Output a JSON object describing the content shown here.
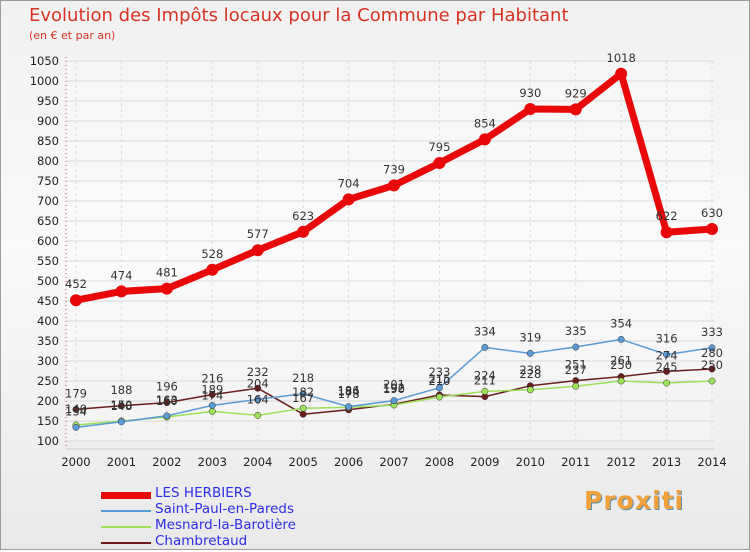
{
  "title": "Evolution des Impôts locaux pour la Commune par Habitant",
  "subtitle": "(en € et par an)",
  "logo_text": "Proxiti",
  "chart_data": {
    "type": "line",
    "title": "Evolution des Impôts locaux pour la Commune par Habitant",
    "ylabel": "(en € et par an)",
    "xlabel": "",
    "categories": [
      "2000",
      "2001",
      "2002",
      "2003",
      "2004",
      "2005",
      "2006",
      "2007",
      "2008",
      "2009",
      "2010",
      "2011",
      "2012",
      "2013",
      "2014"
    ],
    "yticks": [
      100,
      150,
      200,
      250,
      300,
      350,
      400,
      450,
      500,
      550,
      600,
      650,
      700,
      750,
      800,
      850,
      900,
      950,
      1000,
      1050
    ],
    "ylim": [
      100,
      1050
    ],
    "grid": true,
    "legend_position": "bottom-left",
    "series": [
      {
        "name": "LES HERBIERS",
        "color": "#e8080a",
        "values": [
          452,
          474,
          481,
          528,
          577,
          623,
          704,
          739,
          795,
          854,
          930,
          929,
          1018,
          622,
          630
        ]
      },
      {
        "name": "Saint-Paul-en-Pareds",
        "color": "#5b9bd5",
        "values": [
          134,
          148,
          163,
          189,
          204,
          218,
          186,
          201,
          233,
          334,
          319,
          335,
          354,
          316,
          333
        ]
      },
      {
        "name": "Mesnard-la-Barotière",
        "color": "#9de05a",
        "values": [
          140,
          150,
          160,
          174,
          164,
          182,
          184,
          190,
          210,
          224,
          228,
          237,
          250,
          245,
          250
        ]
      },
      {
        "name": "Chambretaud",
        "color": "#6b1d1d",
        "values": [
          179,
          188,
          196,
          216,
          232,
          167,
          178,
          192,
          215,
          211,
          238,
          251,
          261,
          274,
          280
        ]
      }
    ]
  }
}
